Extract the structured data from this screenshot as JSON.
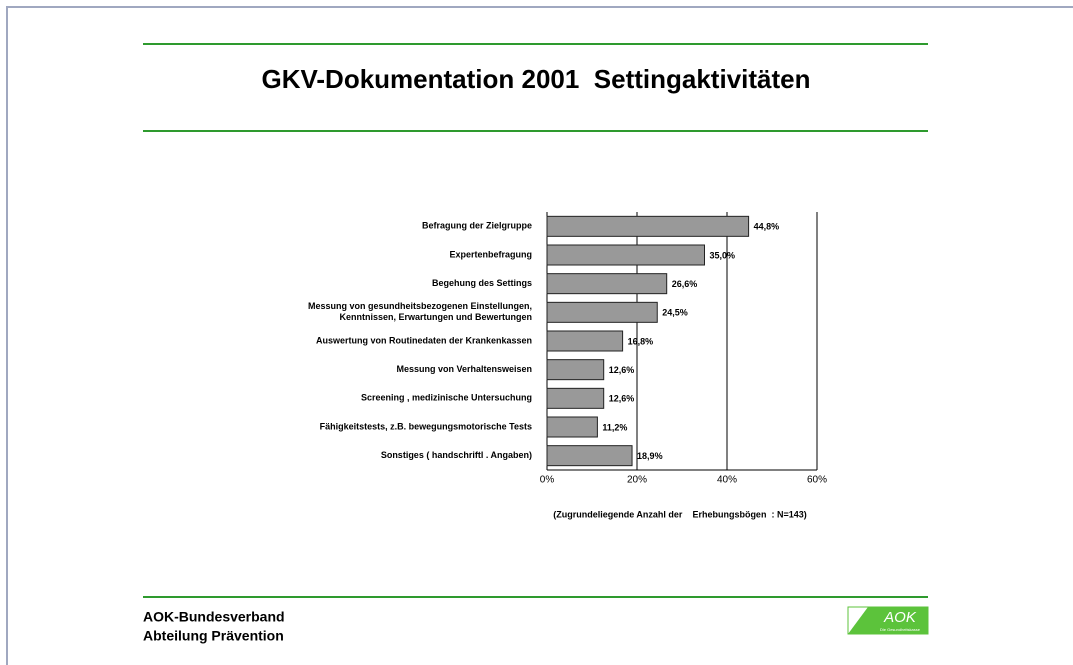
{
  "chart_data": {
    "type": "bar",
    "orientation": "horizontal",
    "title": "GKV-Dokumentation 2001  Settingaktivitäten",
    "categories": [
      "Befragung der Zielgruppe",
      "Expertenbefragung",
      "Begehung des  Settings",
      "Messung von gesundheitsbezogenen Einstellungen,\nKenntnissen, Erwartungen und Bewertungen",
      "Auswertung von Routinedaten der Krankenkassen",
      "Messung von Verhaltensweisen",
      "Screening , medizinische Untersuchung",
      "Fähigkeitstests, z.B. bewegungsmotorische Tests",
      "Sonstiges ( handschriftl . Angaben)"
    ],
    "values": [
      44.8,
      35.0,
      26.6,
      24.5,
      16.8,
      12.6,
      12.6,
      11.2,
      18.9
    ],
    "value_labels": [
      "44,8%",
      "35,0%",
      "26,6%",
      "24,5%",
      "16,8%",
      "12,6%",
      "12,6%",
      "11,2%",
      "18,9%"
    ],
    "color": "#999999",
    "xlim": [
      0,
      60
    ],
    "xticks": [
      {
        "value": 0,
        "label": "0%"
      },
      {
        "value": 20,
        "label": "20%"
      },
      {
        "value": 40,
        "label": "40%"
      },
      {
        "value": 60,
        "label": "60%"
      }
    ],
    "grid": true,
    "note": "(Zugrundeliegende Anzahl der    Erhebungsbögen  : N=143)"
  },
  "footer": {
    "lines": [
      "AOK-Bundesverband",
      "Abteilung Prävention"
    ],
    "logo": "AOK",
    "logo_tagline": "Die Gesundheitskasse"
  }
}
